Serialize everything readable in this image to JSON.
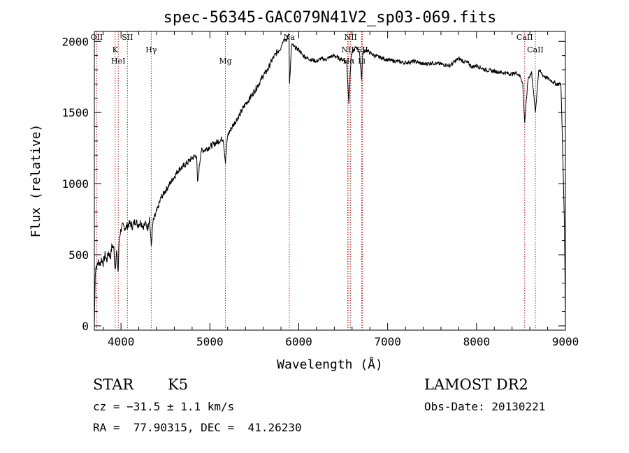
{
  "chart_data": {
    "type": "line",
    "title": "spec-56345-GAC079N41V2_sp03-069.fits",
    "xlabel": "Wavelength (Å)",
    "ylabel": "Flux (relative)",
    "xlim": [
      3700,
      9000
    ],
    "ylim": [
      -30,
      2070
    ],
    "xticks": [
      4000,
      5000,
      6000,
      7000,
      8000,
      9000
    ],
    "yticks": [
      0,
      500,
      1000,
      1500,
      2000
    ],
    "grid": false,
    "line_color": "#000000",
    "marker_color": "#b22222",
    "series": [
      {
        "x": [
          3700,
          3710,
          3720,
          3740,
          3760,
          3780,
          3800,
          3820,
          3840,
          3860,
          3880,
          3900,
          3920,
          3933,
          3950,
          3968,
          3980,
          4000,
          4020,
          4050,
          4080,
          4100,
          4130,
          4160,
          4190,
          4220,
          4250,
          4280,
          4300,
          4320,
          4340,
          4360,
          4400,
          4450,
          4500,
          4550,
          4600,
          4650,
          4700,
          4750,
          4800,
          4850,
          4861,
          4900,
          4950,
          5000,
          5050,
          5100,
          5150,
          5175,
          5200,
          5250,
          5300,
          5350,
          5400,
          5450,
          5500,
          5550,
          5600,
          5650,
          5700,
          5750,
          5800,
          5830,
          5860,
          5890,
          5896,
          5920,
          5950,
          6000,
          6050,
          6100,
          6150,
          6200,
          6250,
          6300,
          6350,
          6400,
          6450,
          6500,
          6540,
          6563,
          6590,
          6620,
          6650,
          6680,
          6708,
          6720,
          6760,
          6800,
          6850,
          6900,
          6950,
          7000,
          7100,
          7200,
          7300,
          7400,
          7500,
          7600,
          7700,
          7800,
          7850,
          7900,
          7950,
          8000,
          8100,
          8200,
          8300,
          8400,
          8450,
          8498,
          8520,
          8542,
          8580,
          8620,
          8662,
          8700,
          8750,
          8800,
          8850,
          8900,
          8950,
          8990,
          9000
        ],
        "y": [
          0,
          350,
          420,
          450,
          430,
          470,
          440,
          500,
          460,
          520,
          480,
          570,
          540,
          400,
          520,
          380,
          620,
          680,
          700,
          690,
          710,
          720,
          700,
          740,
          710,
          730,
          700,
          720,
          690,
          760,
          560,
          730,
          800,
          900,
          950,
          1000,
          1050,
          1100,
          1120,
          1150,
          1180,
          1200,
          1000,
          1230,
          1240,
          1260,
          1280,
          1300,
          1320,
          1150,
          1340,
          1400,
          1450,
          1500,
          1560,
          1600,
          1650,
          1700,
          1760,
          1800,
          1870,
          1920,
          1960,
          2020,
          2000,
          2060,
          1700,
          1980,
          1960,
          1940,
          1900,
          1880,
          1870,
          1860,
          1880,
          1870,
          1890,
          1900,
          1880,
          1870,
          1850,
          1570,
          1900,
          1940,
          1960,
          1930,
          1740,
          1920,
          1940,
          1920,
          1900,
          1890,
          1880,
          1870,
          1860,
          1850,
          1860,
          1840,
          1850,
          1840,
          1830,
          1880,
          1860,
          1850,
          1820,
          1830,
          1800,
          1790,
          1780,
          1770,
          1780,
          1750,
          1700,
          1430,
          1740,
          1780,
          1500,
          1800,
          1760,
          1740,
          1720,
          1700,
          1700,
          700,
          0
        ]
      }
    ],
    "lines": [
      {
        "label": "OII",
        "x": 3727
      },
      {
        "label": "K",
        "x": 3934
      },
      {
        "label": "HeI",
        "x": 3969
      },
      {
        "label": "SII",
        "x": 4072
      },
      {
        "label": "Hγ",
        "x": 4340
      },
      {
        "label": "Mg",
        "x": 5175
      },
      {
        "label": "Na",
        "x": 5893
      },
      {
        "label": "NII",
        "x": 6550
      },
      {
        "label": "Hα",
        "x": 6563
      },
      {
        "label": "NII",
        "x": 6584
      },
      {
        "label": "SII",
        "x": 6717
      },
      {
        "label": "Li",
        "x": 6708
      },
      {
        "label": "CaII",
        "x": 8542
      },
      {
        "label": "CaII",
        "x": 8662
      }
    ]
  },
  "info": {
    "object_type": "STAR",
    "subclass": "K5",
    "survey": "LAMOST DR2",
    "redshift_line": "cz = −31.5 ± 1.1 km/s",
    "obs_date": "Obs-Date: 20130221",
    "coords": "RA =  77.90315, DEC =  41.26230"
  }
}
